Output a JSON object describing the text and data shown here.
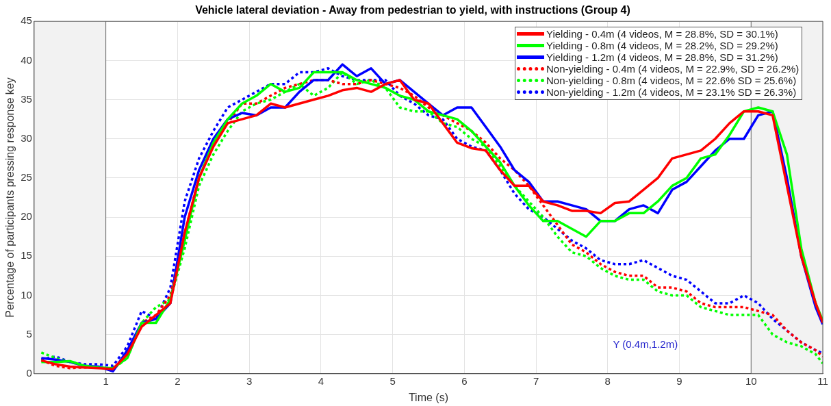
{
  "chart_data": {
    "type": "line",
    "title": "Vehicle lateral deviation - Away from pedestrian to yield, with instructions (Group 4)",
    "xlabel": "Time (s)",
    "ylabel": "Percentage of participants pressing response key",
    "x": [
      0.1,
      0.3,
      0.5,
      0.7,
      0.9,
      1.1,
      1.3,
      1.5,
      1.7,
      1.9,
      2.1,
      2.3,
      2.5,
      2.7,
      2.9,
      3.1,
      3.3,
      3.5,
      3.7,
      3.9,
      4.1,
      4.3,
      4.5,
      4.7,
      4.9,
      5.1,
      5.3,
      5.5,
      5.7,
      5.9,
      6.1,
      6.3,
      6.5,
      6.7,
      6.9,
      7.1,
      7.3,
      7.5,
      7.7,
      7.9,
      8.1,
      8.3,
      8.5,
      8.7,
      8.9,
      9.1,
      9.3,
      9.5,
      9.7,
      9.9,
      10.1,
      10.3,
      10.5,
      10.7,
      10.9,
      11.0
    ],
    "series": [
      {
        "name": "Yielding - 0.4m (4 videos, M = 28.8%, SD = 30.1%)",
        "color": "#ff0000",
        "line_style": "solid",
        "values": [
          1.7,
          1.2,
          0.9,
          0.8,
          0.7,
          0.6,
          2.5,
          6,
          7.5,
          9,
          18,
          25,
          29,
          32,
          32.5,
          33,
          34.5,
          34,
          34.5,
          35,
          35.5,
          36.2,
          36.5,
          36,
          37,
          37.5,
          35,
          34.5,
          32,
          29.5,
          28.8,
          28.5,
          26,
          24,
          24,
          22,
          21.5,
          20.8,
          20.8,
          20.5,
          21.8,
          22,
          23.5,
          25,
          27.5,
          28,
          28.5,
          30,
          32,
          33.5,
          33.5,
          33,
          24,
          15,
          9,
          6.5
        ]
      },
      {
        "name": "Yielding - 0.8m (4 videos, M = 28.2%, SD = 29.2%)",
        "color": "#00ff00",
        "line_style": "solid",
        "values": [
          1.5,
          1.5,
          1.6,
          1,
          0.8,
          0.7,
          2,
          6.5,
          6.5,
          9.5,
          17,
          25,
          29.5,
          32.5,
          34.5,
          35.5,
          37,
          36,
          36.5,
          38.5,
          38.5,
          38.5,
          37.5,
          37,
          36.5,
          35.5,
          35,
          33.5,
          33,
          32.5,
          31,
          29,
          27,
          24,
          21.5,
          19.5,
          19.5,
          18.5,
          17.5,
          19.5,
          19.5,
          20.5,
          20.5,
          22,
          24,
          25,
          27.5,
          28,
          30.5,
          33.5,
          34,
          33.5,
          28,
          16,
          9,
          6.8
        ]
      },
      {
        "name": "Yielding - 1.2m (4 videos, M = 28.8%, SD = 31.2%)",
        "color": "#0000ff",
        "line_style": "solid",
        "values": [
          2,
          1.8,
          1.5,
          1,
          0.9,
          0.3,
          3,
          6.5,
          7,
          9,
          20,
          26,
          30,
          32.5,
          33.3,
          33,
          34,
          34,
          36,
          37.5,
          37.5,
          39.5,
          38,
          39,
          37,
          37.5,
          36,
          34.5,
          33,
          34,
          34,
          31.5,
          29,
          26,
          24.5,
          22,
          22,
          21.5,
          21,
          19.5,
          19.5,
          21,
          21.5,
          20.5,
          23.5,
          24.5,
          26.5,
          28.5,
          30,
          30,
          33,
          33.5,
          25,
          15,
          8.5,
          6.3
        ]
      },
      {
        "name": "Non-yielding - 0.4m (4 videos, M = 22.9%, SD = 26.2%)",
        "color": "#ff0000",
        "line_style": "dotted",
        "values": [
          1.7,
          1,
          0.7,
          0.8,
          0.8,
          0.6,
          2.5,
          6.5,
          7.5,
          10,
          18,
          25,
          29.5,
          32,
          34.5,
          34.5,
          35.5,
          36.5,
          37,
          37.5,
          37.5,
          37,
          37,
          37.5,
          37,
          36.5,
          35.5,
          34,
          33,
          32,
          31,
          29.5,
          27.5,
          26,
          24,
          21.5,
          19,
          16.5,
          15.5,
          14,
          13,
          12.5,
          12.5,
          11,
          11,
          10.5,
          9,
          8.5,
          8.5,
          8.5,
          8,
          7.5,
          5.5,
          4,
          3,
          2.2
        ]
      },
      {
        "name": "Non-yielding - 0.8m (4 videos, M = 22.6% SD = 25.6%)",
        "color": "#00ff00",
        "line_style": "dotted",
        "values": [
          2.7,
          2,
          1.5,
          1,
          0.8,
          0.6,
          2,
          6.5,
          8.5,
          9.5,
          16,
          24,
          28,
          31,
          33.5,
          34.5,
          35,
          36,
          37,
          35.5,
          36.5,
          38.5,
          37,
          37.5,
          36.5,
          34,
          33.5,
          33.5,
          32,
          31.5,
          30,
          29,
          26.5,
          24,
          22,
          20,
          17.5,
          15.5,
          15,
          13.5,
          12.5,
          12,
          12,
          10.5,
          10,
          10,
          8.5,
          8,
          7.5,
          7.5,
          7.5,
          5,
          4,
          3.5,
          2.5,
          1.3
        ]
      },
      {
        "name": "Non-yielding - 1.2m (4 videos, M = 23.1% SD = 26.3%)",
        "color": "#0000ff",
        "line_style": "dotted",
        "values": [
          1.8,
          2.2,
          1.5,
          1.2,
          1.2,
          1,
          3.5,
          8,
          7,
          11,
          22,
          27.5,
          31,
          34,
          35,
          36,
          37,
          37,
          38.5,
          38.5,
          39,
          38,
          37.5,
          37.5,
          37.5,
          35.5,
          34.5,
          33,
          32.5,
          30,
          29,
          28.5,
          26,
          23,
          21,
          20,
          18.5,
          17,
          16,
          14.5,
          14,
          14,
          14.5,
          13.5,
          12.5,
          12,
          10.5,
          9,
          9,
          10,
          9,
          7,
          5.5,
          4,
          3,
          2.6
        ]
      }
    ],
    "xlim": [
      0,
      11
    ],
    "xticks": [
      {
        "value": 0,
        "label": null
      },
      1,
      2,
      3,
      4,
      5,
      6,
      7,
      8,
      9,
      10,
      11
    ],
    "ylim": [
      0,
      45
    ],
    "yticks": [
      0,
      5,
      10,
      15,
      20,
      25,
      30,
      35,
      40,
      45
    ],
    "bands": [
      {
        "axis": "x",
        "from": 0,
        "to": 1,
        "color": "#f2f2f2"
      },
      {
        "axis": "x",
        "from": 10,
        "to": 11,
        "color": "#f2f2f2"
      }
    ],
    "annotations": [
      "Y (0.4m,1.2m)"
    ],
    "grid": true,
    "legend": "top right",
    "marker": "none"
  }
}
